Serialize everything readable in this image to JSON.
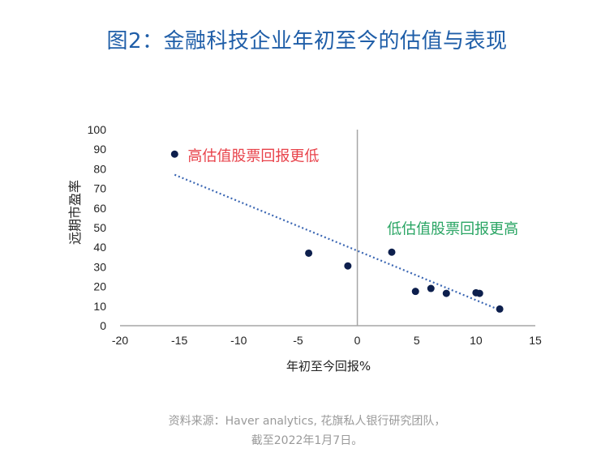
{
  "title": "图2：金融科技企业年初至今的估值与表现",
  "source_line1": "资料来源：Haver analytics, 花旗私人银行研究团队，",
  "source_line2": "截至2022年1月7日。",
  "colors": {
    "title": "#1f5ea8",
    "points": "#0d1f4d",
    "trend": "#3a66b3",
    "high_label": "#e8424a",
    "low_label": "#2aa564",
    "axis": "#a6a6a6"
  },
  "chart_data": {
    "type": "scatter",
    "xlabel": "年初至今回报%",
    "ylabel": "远期市盈率",
    "xlim": [
      -20,
      15
    ],
    "ylim": [
      0,
      100
    ],
    "x_ticks": [
      -20,
      -15,
      -10,
      -5,
      0,
      5,
      10,
      15
    ],
    "x_tick_labels": [
      "-20",
      "-15",
      "-10",
      "-5",
      "0",
      "5",
      "10",
      "15"
    ],
    "y_ticks": [
      0,
      10,
      20,
      30,
      40,
      50,
      60,
      70,
      80,
      90,
      100
    ],
    "y_tick_labels": [
      "0",
      "10",
      "20",
      "30",
      "40",
      "50",
      "60",
      "70",
      "80",
      "90",
      "100"
    ],
    "points": [
      {
        "x": -15.4,
        "y": 87.5
      },
      {
        "x": -4.1,
        "y": 37.0
      },
      {
        "x": -0.8,
        "y": 30.5
      },
      {
        "x": 2.9,
        "y": 37.5
      },
      {
        "x": 4.9,
        "y": 17.5
      },
      {
        "x": 6.2,
        "y": 19.0
      },
      {
        "x": 7.5,
        "y": 16.5
      },
      {
        "x": 10.0,
        "y": 16.8
      },
      {
        "x": 10.3,
        "y": 16.5
      },
      {
        "x": 12.0,
        "y": 8.5
      }
    ],
    "trendline": {
      "x": [
        -15.4,
        12.0
      ],
      "y": [
        77.0,
        8.0
      ]
    },
    "annotations": [
      {
        "text": "高估值股票回报更低",
        "x": -14.3,
        "y": 84,
        "color_key": "high_label"
      },
      {
        "text": "低估值股票回报更高",
        "x": 2.5,
        "y": 47,
        "color_key": "low_label"
      }
    ],
    "grid": false
  }
}
